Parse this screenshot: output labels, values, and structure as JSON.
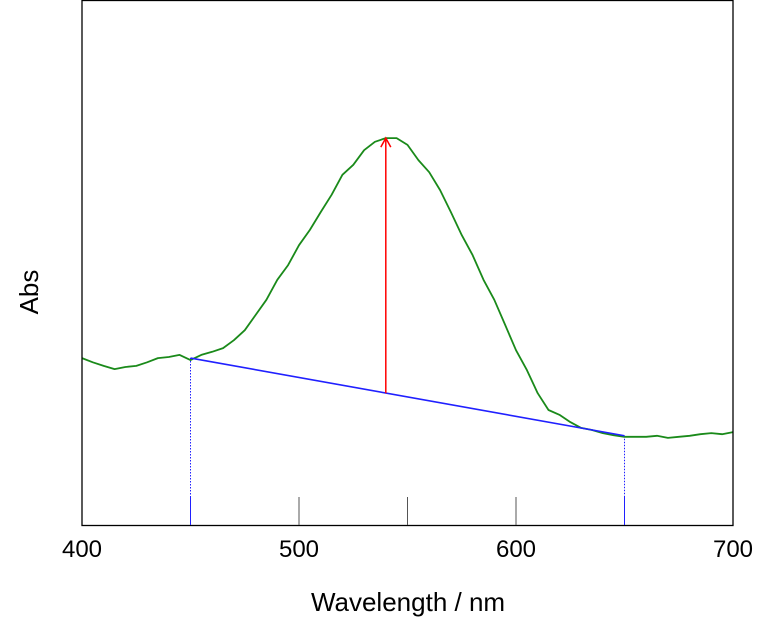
{
  "chart_data": {
    "type": "line",
    "title": "",
    "xlabel": "Wavelength / nm",
    "ylabel": "Abs",
    "xlim": [
      400,
      700
    ],
    "ylim": [
      0,
      1
    ],
    "x_ticks": [
      400,
      500,
      600,
      700
    ],
    "x_minor_ticks": [
      450,
      500,
      550,
      600,
      650
    ],
    "grid": false,
    "legend": "none",
    "series": [
      {
        "color": "#1a8a1a",
        "x": [
          400,
          405,
          410,
          415,
          420,
          425,
          430,
          435,
          440,
          445,
          450,
          455,
          460,
          465,
          470,
          475,
          480,
          485,
          490,
          495,
          500,
          505,
          510,
          515,
          520,
          525,
          530,
          535,
          540,
          545,
          550,
          555,
          560,
          565,
          570,
          575,
          580,
          585,
          590,
          595,
          600,
          605,
          610,
          615,
          620,
          625,
          630,
          635,
          640,
          645,
          650,
          655,
          660,
          665,
          670,
          675,
          680,
          685,
          690,
          695,
          700
        ],
        "y": [
          0.318,
          0.31,
          0.303,
          0.297,
          0.301,
          0.303,
          0.31,
          0.318,
          0.32,
          0.324,
          0.314,
          0.324,
          0.33,
          0.337,
          0.352,
          0.371,
          0.4,
          0.429,
          0.467,
          0.495,
          0.533,
          0.562,
          0.596,
          0.629,
          0.667,
          0.686,
          0.714,
          0.73,
          0.737,
          0.737,
          0.724,
          0.695,
          0.672,
          0.638,
          0.596,
          0.552,
          0.514,
          0.467,
          0.429,
          0.381,
          0.333,
          0.295,
          0.251,
          0.219,
          0.21,
          0.196,
          0.185,
          0.181,
          0.175,
          0.171,
          0.168,
          0.168,
          0.168,
          0.17,
          0.166,
          0.168,
          0.17,
          0.173,
          0.175,
          0.173,
          0.177
        ]
      }
    ],
    "baseline": {
      "color": "#2020ff",
      "x": [
        450,
        650
      ],
      "y": [
        0.318,
        0.17
      ]
    },
    "peak_arrow": {
      "color": "#ff0000",
      "x": 540,
      "y_from": 0.251,
      "y_to": 0.737
    }
  }
}
